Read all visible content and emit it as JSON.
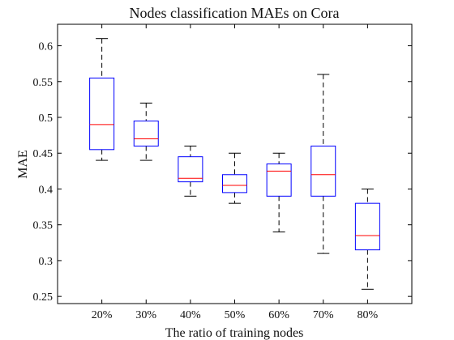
{
  "chart_data": {
    "type": "box",
    "title": "Nodes classification MAEs on Cora",
    "xlabel": "The ratio of training nodes",
    "ylabel": "MAE",
    "ylim": [
      0.24,
      0.63
    ],
    "yticks": [
      0.25,
      0.3,
      0.35,
      0.4,
      0.45,
      0.5,
      0.55,
      0.6
    ],
    "ytick_labels": [
      "0.25",
      "0.3",
      "0.35",
      "0.4",
      "0.45",
      "0.5",
      "0.55",
      "0.6"
    ],
    "categories": [
      "20%",
      "30%",
      "40%",
      "50%",
      "60%",
      "70%",
      "80%"
    ],
    "boxes": [
      {
        "label": "20%",
        "whisker_low": 0.44,
        "q1": 0.455,
        "median": 0.49,
        "q3": 0.555,
        "whisker_high": 0.61
      },
      {
        "label": "30%",
        "whisker_low": 0.44,
        "q1": 0.46,
        "median": 0.47,
        "q3": 0.495,
        "whisker_high": 0.52
      },
      {
        "label": "40%",
        "whisker_low": 0.39,
        "q1": 0.41,
        "median": 0.415,
        "q3": 0.445,
        "whisker_high": 0.46
      },
      {
        "label": "50%",
        "whisker_low": 0.38,
        "q1": 0.395,
        "median": 0.405,
        "q3": 0.42,
        "whisker_high": 0.45
      },
      {
        "label": "60%",
        "whisker_low": 0.34,
        "q1": 0.39,
        "median": 0.425,
        "q3": 0.435,
        "whisker_high": 0.45
      },
      {
        "label": "70%",
        "whisker_low": 0.31,
        "q1": 0.39,
        "median": 0.42,
        "q3": 0.46,
        "whisker_high": 0.56
      },
      {
        "label": "80%",
        "whisker_low": 0.26,
        "q1": 0.315,
        "median": 0.335,
        "q3": 0.38,
        "whisker_high": 0.4
      }
    ],
    "colors": {
      "box": "#0000ff",
      "median": "#ff0000",
      "whisker": "#000000",
      "axes": "#000000"
    },
    "grid": false,
    "legend": "none"
  }
}
